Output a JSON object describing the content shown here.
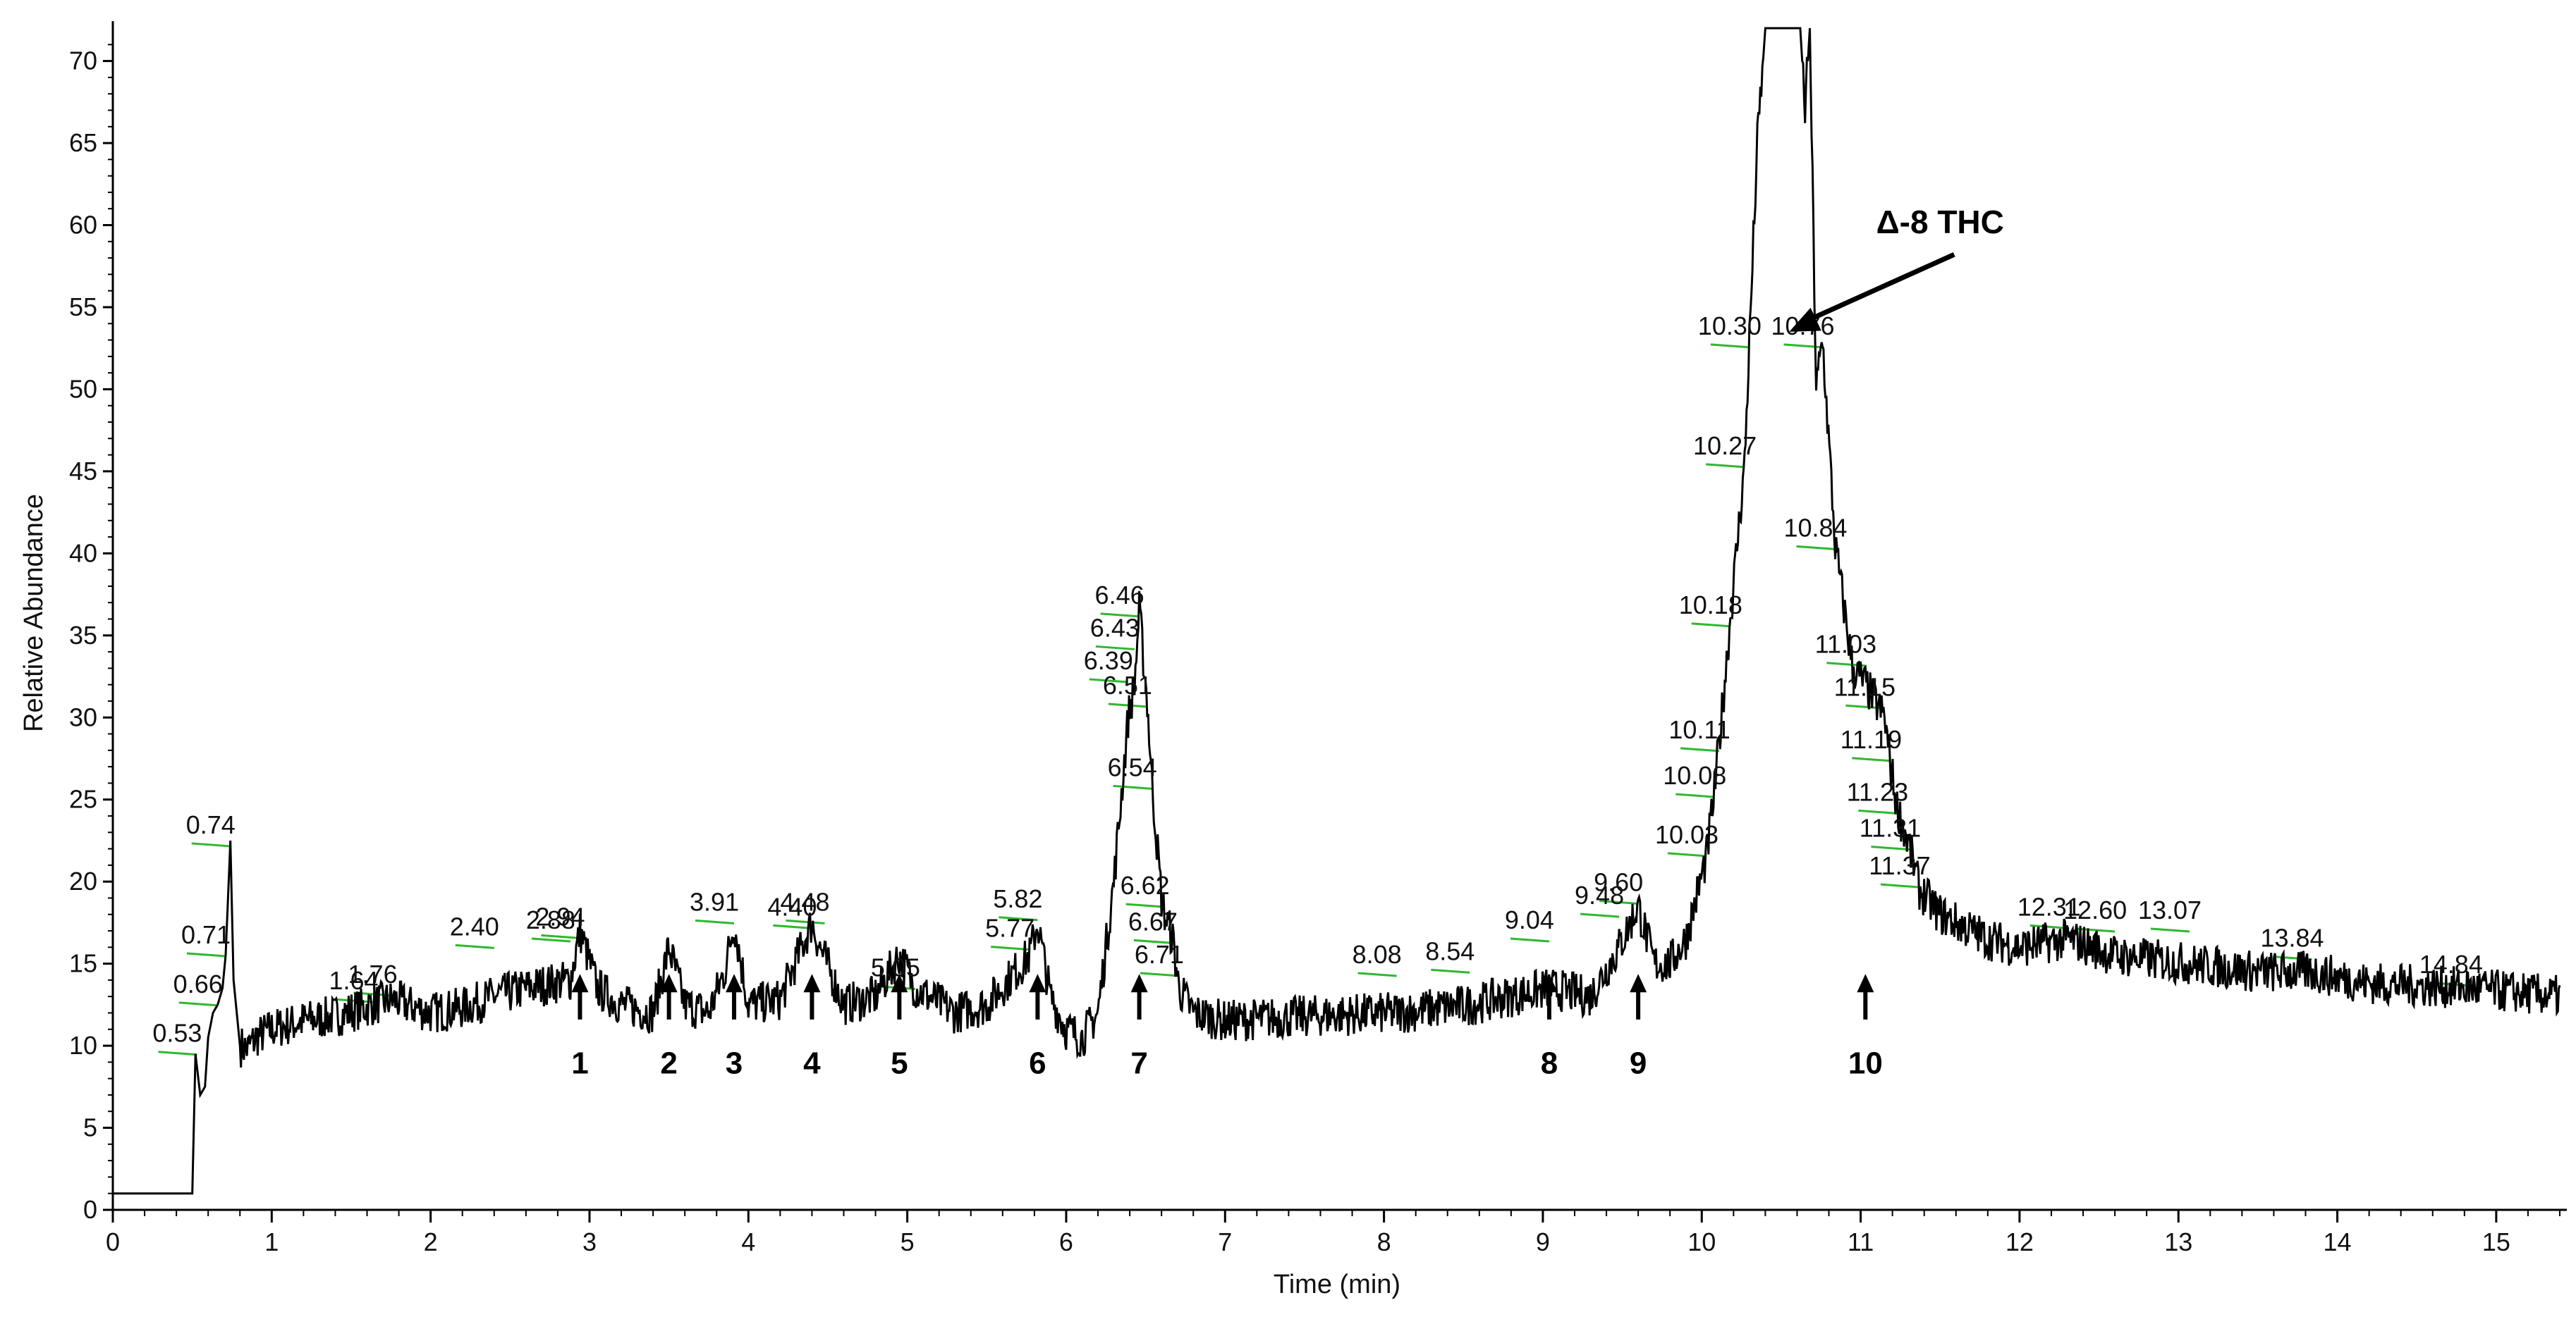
{
  "chart_data": {
    "type": "line",
    "title": "",
    "xlabel": "Time (min)",
    "ylabel": "Relative Abundance",
    "xlim": [
      0,
      15.4
    ],
    "ylim": [
      0,
      72
    ],
    "x_ticks": [
      0,
      1,
      2,
      3,
      4,
      5,
      6,
      7,
      8,
      9,
      10,
      11,
      12,
      13,
      14,
      15
    ],
    "y_ticks": [
      0,
      5,
      10,
      15,
      20,
      25,
      30,
      35,
      40,
      45,
      50,
      55,
      60,
      65,
      70
    ],
    "grid": false,
    "line_color": "#000000",
    "label_marker_color": "#2eb82e",
    "trace": [
      [
        0.0,
        1.0
      ],
      [
        0.5,
        1.0
      ],
      [
        0.52,
        9.5
      ],
      [
        0.55,
        7.0
      ],
      [
        0.58,
        7.5
      ],
      [
        0.6,
        10.5
      ],
      [
        0.63,
        12.0
      ],
      [
        0.66,
        12.5
      ],
      [
        0.69,
        13.5
      ],
      [
        0.71,
        15.5
      ],
      [
        0.74,
        22.5
      ],
      [
        0.76,
        14.0
      ],
      [
        0.8,
        10.0
      ],
      [
        0.85,
        9.8
      ],
      [
        0.9,
        10.5
      ],
      [
        1.0,
        11.0
      ],
      [
        1.2,
        11.5
      ],
      [
        1.4,
        11.8
      ],
      [
        1.64,
        12.5
      ],
      [
        1.76,
        12.8
      ],
      [
        2.0,
        12.0
      ],
      [
        2.2,
        12.3
      ],
      [
        2.4,
        13.0
      ],
      [
        2.6,
        13.5
      ],
      [
        2.88,
        14.0
      ],
      [
        2.94,
        17.0
      ],
      [
        3.05,
        13.5
      ],
      [
        3.2,
        12.5
      ],
      [
        3.4,
        12.0
      ],
      [
        3.5,
        16.0
      ],
      [
        3.6,
        12.5
      ],
      [
        3.75,
        12.0
      ],
      [
        3.85,
        14.5
      ],
      [
        3.91,
        17.5
      ],
      [
        4.0,
        12.5
      ],
      [
        4.2,
        12.8
      ],
      [
        4.4,
        17.5
      ],
      [
        4.45,
        16.0
      ],
      [
        4.6,
        12.5
      ],
      [
        4.8,
        13.0
      ],
      [
        4.95,
        15.5
      ],
      [
        5.05,
        13.5
      ],
      [
        5.3,
        12.0
      ],
      [
        5.5,
        12.5
      ],
      [
        5.77,
        15.5
      ],
      [
        5.82,
        17.5
      ],
      [
        5.9,
        13.0
      ],
      [
        6.0,
        11.0
      ],
      [
        6.1,
        10.5
      ],
      [
        6.2,
        12.0
      ],
      [
        6.3,
        20.0
      ],
      [
        6.39,
        30.0
      ],
      [
        6.43,
        32.0
      ],
      [
        6.46,
        36.5
      ],
      [
        6.51,
        31.0
      ],
      [
        6.54,
        26.0
      ],
      [
        6.6,
        19.0
      ],
      [
        6.62,
        18.0
      ],
      [
        6.67,
        16.5
      ],
      [
        6.71,
        13.5
      ],
      [
        6.8,
        12.0
      ],
      [
        7.0,
        11.5
      ],
      [
        7.5,
        11.8
      ],
      [
        8.08,
        12.0
      ],
      [
        8.54,
        12.5
      ],
      [
        9.04,
        13.5
      ],
      [
        9.3,
        13.0
      ],
      [
        9.48,
        16.0
      ],
      [
        9.6,
        18.5
      ],
      [
        9.7,
        15.0
      ],
      [
        9.8,
        15.0
      ],
      [
        9.9,
        16.5
      ],
      [
        10.03,
        21.5
      ],
      [
        10.08,
        25.5
      ],
      [
        10.11,
        28.5
      ],
      [
        10.18,
        36.0
      ],
      [
        10.27,
        45.5
      ],
      [
        10.3,
        53.0
      ],
      [
        10.35,
        65.0
      ],
      [
        10.4,
        72.0
      ],
      [
        10.55,
        72.0
      ],
      [
        10.62,
        72.0
      ],
      [
        10.65,
        67.0
      ],
      [
        10.68,
        72.0
      ],
      [
        10.72,
        50.0
      ],
      [
        10.76,
        53.0
      ],
      [
        10.84,
        40.5
      ],
      [
        10.95,
        33.0
      ],
      [
        11.03,
        32.0
      ],
      [
        11.15,
        30.0
      ],
      [
        11.19,
        27.0
      ],
      [
        11.23,
        24.5
      ],
      [
        11.31,
        22.0
      ],
      [
        11.37,
        19.5
      ],
      [
        11.5,
        18.0
      ],
      [
        11.8,
        16.5
      ],
      [
        12.0,
        16.0
      ],
      [
        12.31,
        16.5
      ],
      [
        12.6,
        15.5
      ],
      [
        13.07,
        15.0
      ],
      [
        13.5,
        14.5
      ],
      [
        13.84,
        14.5
      ],
      [
        14.2,
        13.8
      ],
      [
        14.84,
        13.5
      ],
      [
        15.4,
        13.0
      ]
    ],
    "peak_labels": [
      {
        "text": "0.53",
        "x": 0.53,
        "y": 9.8
      },
      {
        "text": "0.66",
        "x": 0.66,
        "y": 12.8
      },
      {
        "text": "0.71",
        "x": 0.71,
        "y": 15.8
      },
      {
        "text": "0.74",
        "x": 0.74,
        "y": 22.5
      },
      {
        "text": "1.64",
        "x": 1.64,
        "y": 13.0
      },
      {
        "text": "1.76",
        "x": 1.76,
        "y": 13.4
      },
      {
        "text": "2.40",
        "x": 2.4,
        "y": 16.3
      },
      {
        "text": "2.88",
        "x": 2.88,
        "y": 16.7
      },
      {
        "text": "2.94",
        "x": 2.94,
        "y": 16.9
      },
      {
        "text": "3.91",
        "x": 3.91,
        "y": 17.8
      },
      {
        "text": "4.40",
        "x": 4.4,
        "y": 17.5
      },
      {
        "text": "4.48",
        "x": 4.48,
        "y": 17.8
      },
      {
        "text": "5.05",
        "x": 5.05,
        "y": 13.8
      },
      {
        "text": "5.77",
        "x": 5.77,
        "y": 16.2
      },
      {
        "text": "5.82",
        "x": 5.82,
        "y": 18.0
      },
      {
        "text": "6.39",
        "x": 6.39,
        "y": 32.5
      },
      {
        "text": "6.43",
        "x": 6.43,
        "y": 34.5
      },
      {
        "text": "6.46",
        "x": 6.46,
        "y": 36.5
      },
      {
        "text": "6.51",
        "x": 6.51,
        "y": 31.0
      },
      {
        "text": "6.54",
        "x": 6.54,
        "y": 26.0
      },
      {
        "text": "6.62",
        "x": 6.62,
        "y": 18.8
      },
      {
        "text": "6.67",
        "x": 6.67,
        "y": 16.6
      },
      {
        "text": "6.71",
        "x": 6.71,
        "y": 14.6
      },
      {
        "text": "8.08",
        "x": 8.08,
        "y": 14.6
      },
      {
        "text": "8.54",
        "x": 8.54,
        "y": 14.8
      },
      {
        "text": "9.04",
        "x": 9.04,
        "y": 16.7
      },
      {
        "text": "9.48",
        "x": 9.48,
        "y": 18.2
      },
      {
        "text": "9.60",
        "x": 9.6,
        "y": 19.0
      },
      {
        "text": "10.03",
        "x": 10.03,
        "y": 21.9
      },
      {
        "text": "10.08",
        "x": 10.08,
        "y": 25.5
      },
      {
        "text": "10.11",
        "x": 10.11,
        "y": 28.3
      },
      {
        "text": "10.18",
        "x": 10.18,
        "y": 35.9
      },
      {
        "text": "10.27",
        "x": 10.27,
        "y": 45.6
      },
      {
        "text": "10.30",
        "x": 10.3,
        "y": 52.9
      },
      {
        "text": "10.76",
        "x": 10.76,
        "y": 52.9
      },
      {
        "text": "10.84",
        "x": 10.84,
        "y": 40.6
      },
      {
        "text": "11.03",
        "x": 11.03,
        "y": 33.5
      },
      {
        "text": "11.15",
        "x": 11.15,
        "y": 30.9
      },
      {
        "text": "11.19",
        "x": 11.19,
        "y": 27.7
      },
      {
        "text": "11.23",
        "x": 11.23,
        "y": 24.5
      },
      {
        "text": "11.31",
        "x": 11.31,
        "y": 22.3
      },
      {
        "text": "11.37",
        "x": 11.37,
        "y": 20.0
      },
      {
        "text": "12.31",
        "x": 12.31,
        "y": 17.5
      },
      {
        "text": "12.60",
        "x": 12.6,
        "y": 17.3
      },
      {
        "text": "13.07",
        "x": 13.07,
        "y": 17.3
      },
      {
        "text": "13.84",
        "x": 13.84,
        "y": 15.6
      },
      {
        "text": "14.84",
        "x": 14.84,
        "y": 14.0
      }
    ],
    "numbered_peaks": [
      {
        "label": "1",
        "x": 2.94
      },
      {
        "label": "2",
        "x": 3.5
      },
      {
        "label": "3",
        "x": 3.91
      },
      {
        "label": "4",
        "x": 4.4
      },
      {
        "label": "5",
        "x": 4.95
      },
      {
        "label": "6",
        "x": 5.82
      },
      {
        "label": "7",
        "x": 6.46
      },
      {
        "label": "8",
        "x": 9.04
      },
      {
        "label": "9",
        "x": 9.6
      },
      {
        "label": "10",
        "x": 11.03
      }
    ],
    "annotations": [
      {
        "text": "Δ-8 THC",
        "x": 11.5,
        "y": 59.5,
        "arrow_to": [
          10.55,
          53.5
        ]
      }
    ]
  }
}
